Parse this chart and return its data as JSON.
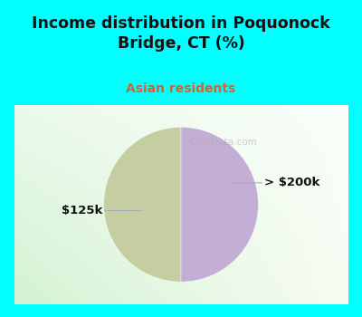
{
  "title": "Income distribution in Poquonock\nBridge, CT (%)",
  "subtitle": "Asian residents",
  "slices": [
    50,
    50
  ],
  "labels": [
    "$125k",
    "> $200k"
  ],
  "slice_colors": [
    "#c5cea0",
    "#c3aed6"
  ],
  "bg_cyan": "#00ffff",
  "title_color": "#111111",
  "subtitle_color": "#cc6633",
  "label_color": "#111111",
  "leader_color": "#aaaacc",
  "startangle": 90,
  "watermark": "City-Data.com",
  "watermark_color": "#aaaaaa",
  "chart_bg_topleft": [
    0.88,
    0.97,
    0.88
  ],
  "chart_bg_topright": [
    0.95,
    0.98,
    0.95
  ],
  "chart_bg_bottomleft": [
    0.82,
    0.97,
    0.92
  ],
  "chart_bg_bottomright": [
    0.9,
    0.99,
    0.97
  ]
}
